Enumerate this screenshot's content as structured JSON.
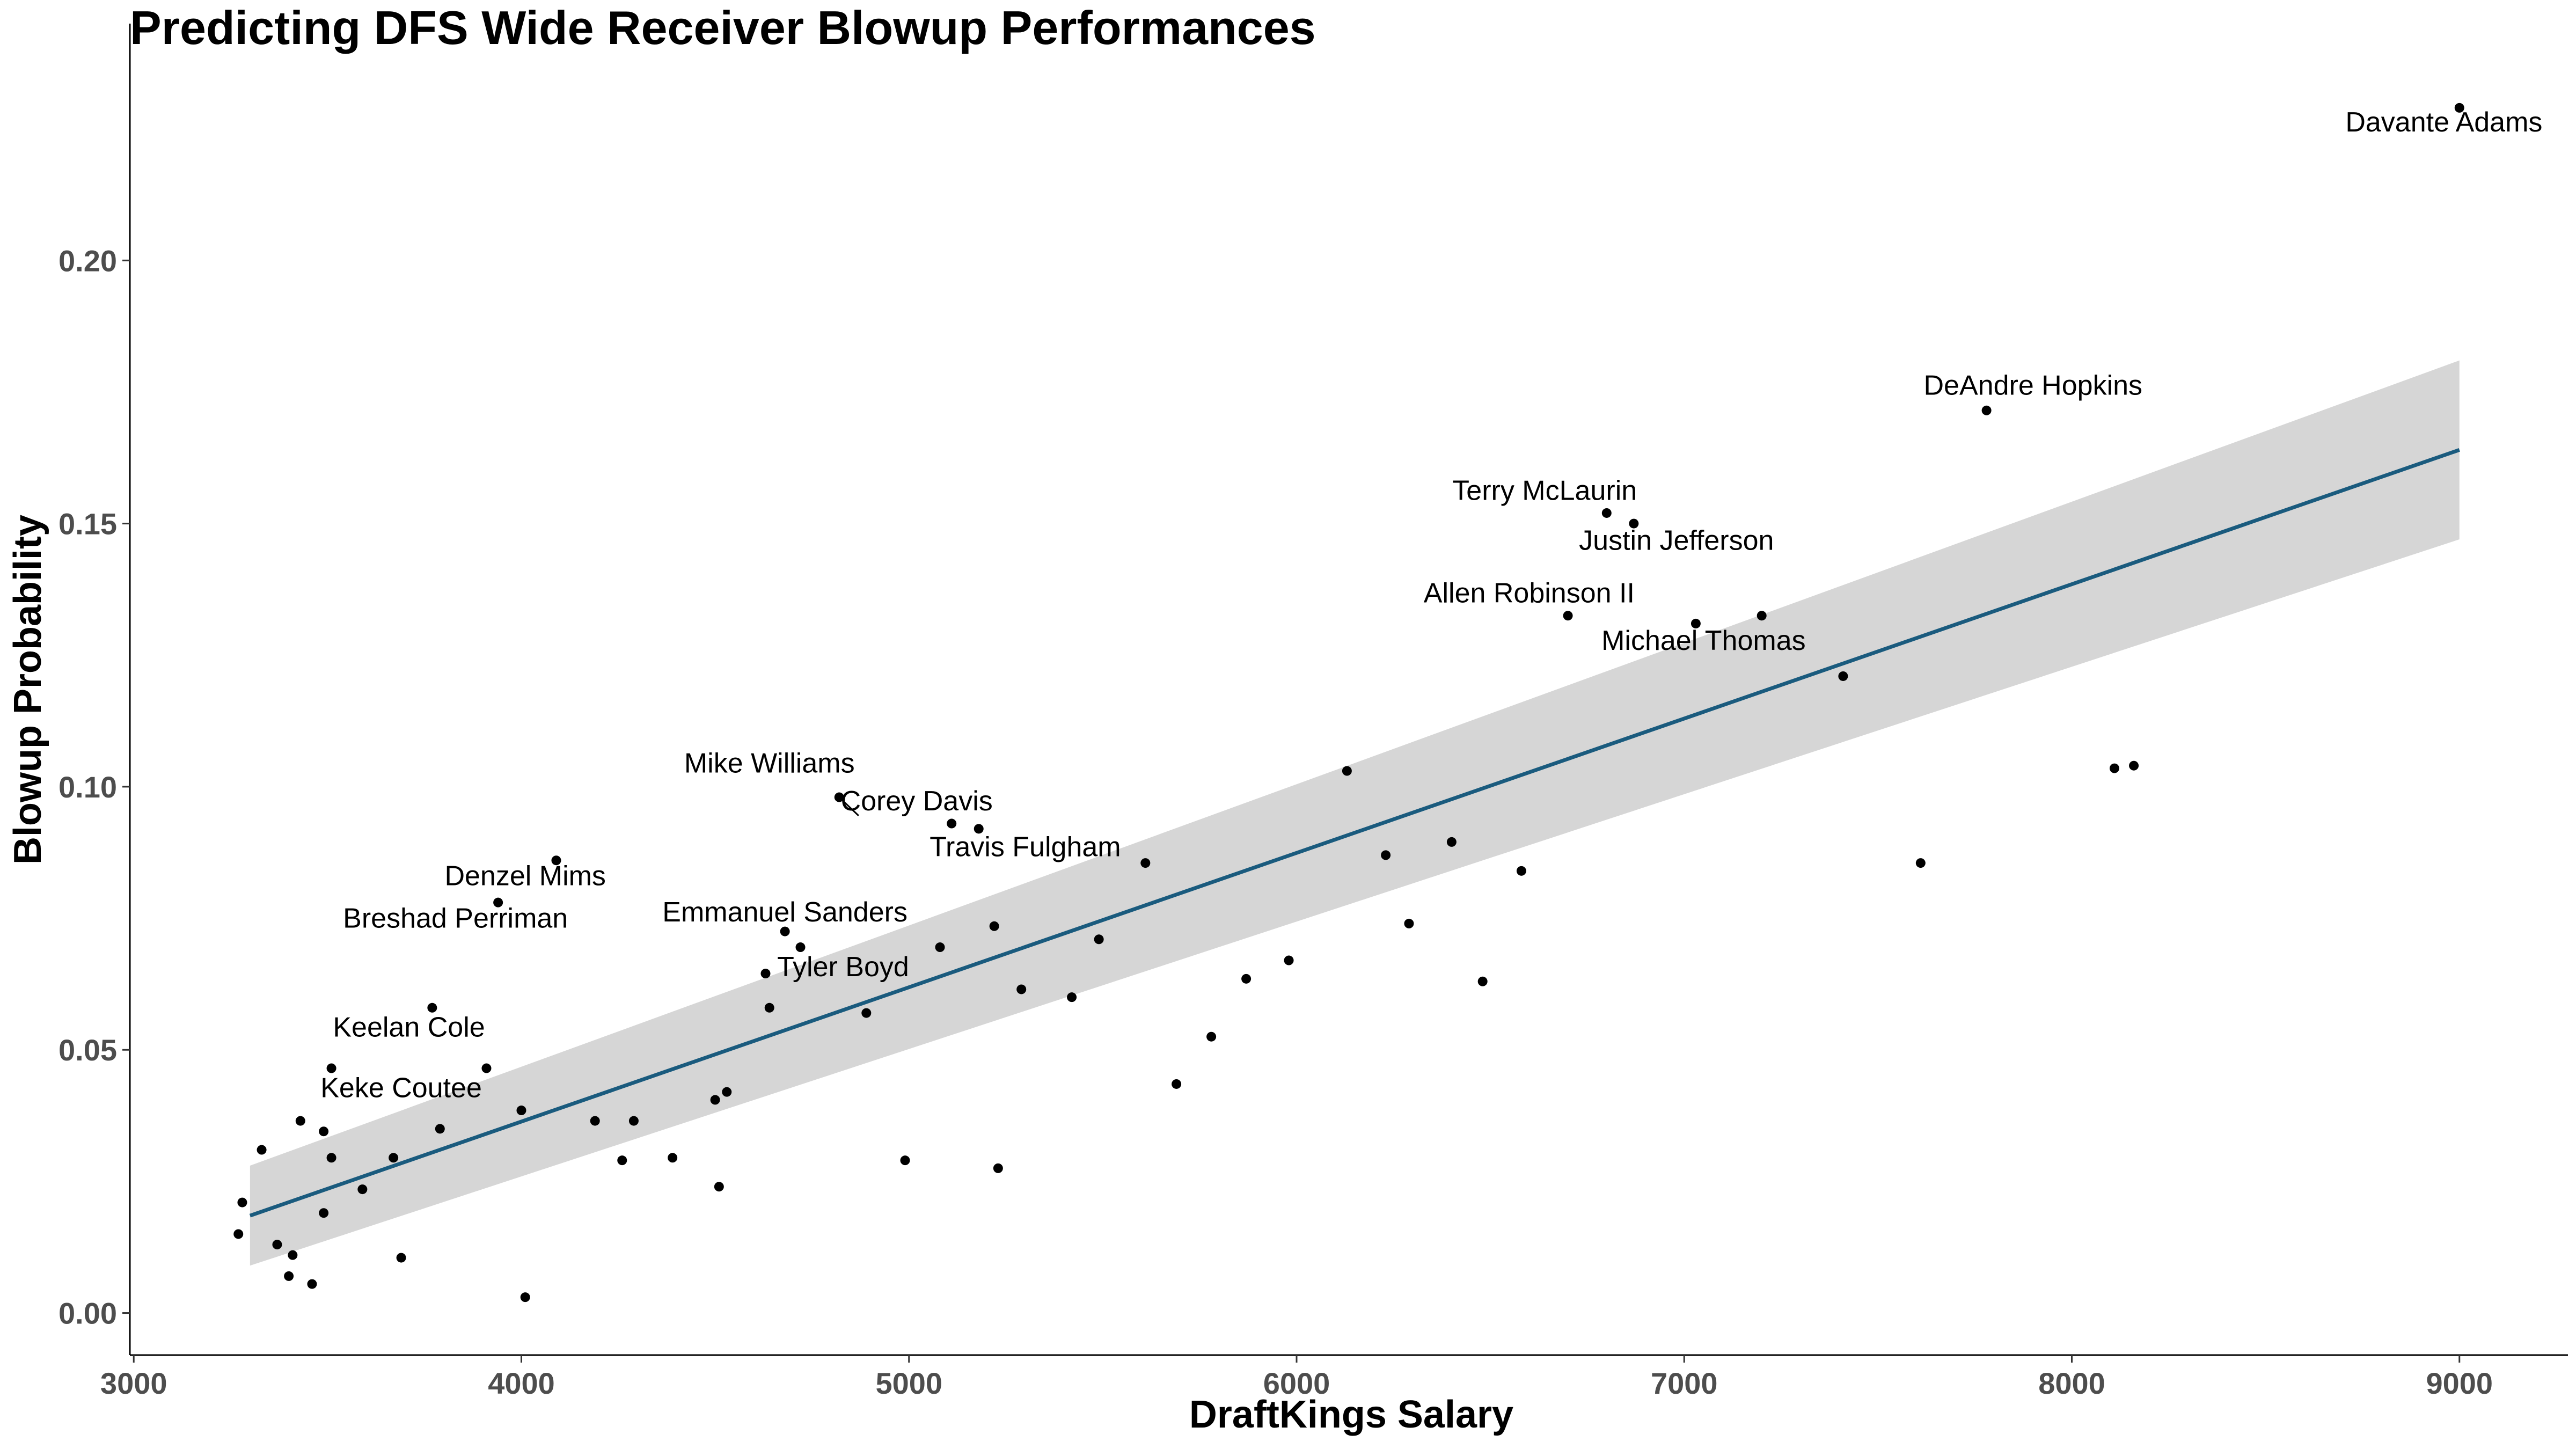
{
  "chart_data": {
    "type": "scatter",
    "title": "Predicting DFS Wide Receiver Blowup Performances",
    "xlabel": "DraftKings Salary",
    "ylabel": "Blowup Probability",
    "xlim": [
      2990,
      9280
    ],
    "ylim": [
      -0.008,
      0.245
    ],
    "x_ticks": [
      3000,
      4000,
      5000,
      6000,
      7000,
      8000,
      9000
    ],
    "x_tick_labels": [
      "3000",
      "4000",
      "5000",
      "6000",
      "7000",
      "8000",
      "9000"
    ],
    "y_ticks": [
      0.0,
      0.05,
      0.1,
      0.15,
      0.2
    ],
    "y_tick_labels": [
      "0.00",
      "0.05",
      "0.10",
      "0.15",
      "0.20"
    ],
    "grid": false,
    "colors": {
      "points": "#000000",
      "fit_line": "#1a5b7e",
      "confidence_band": "#d6d6d6"
    },
    "fit": {
      "x": [
        3300,
        9000
      ],
      "y": [
        0.0185,
        0.164
      ],
      "ci_upper": [
        0.028,
        0.181
      ],
      "ci_lower": [
        0.009,
        0.147
      ]
    },
    "points": [
      {
        "x": 9000,
        "y": 0.229
      },
      {
        "x": 7780,
        "y": 0.1715
      },
      {
        "x": 6800,
        "y": 0.152
      },
      {
        "x": 6870,
        "y": 0.15
      },
      {
        "x": 6700,
        "y": 0.1325
      },
      {
        "x": 7030,
        "y": 0.131
      },
      {
        "x": 7200,
        "y": 0.1325
      },
      {
        "x": 7410,
        "y": 0.121
      },
      {
        "x": 8110,
        "y": 0.1035
      },
      {
        "x": 8160,
        "y": 0.104
      },
      {
        "x": 7610,
        "y": 0.0855
      },
      {
        "x": 6130,
        "y": 0.103
      },
      {
        "x": 6230,
        "y": 0.087
      },
      {
        "x": 6400,
        "y": 0.0895
      },
      {
        "x": 6580,
        "y": 0.084
      },
      {
        "x": 6290,
        "y": 0.074
      },
      {
        "x": 6480,
        "y": 0.063
      },
      {
        "x": 5980,
        "y": 0.067
      },
      {
        "x": 5870,
        "y": 0.0635
      },
      {
        "x": 5780,
        "y": 0.0525
      },
      {
        "x": 5690,
        "y": 0.0435
      },
      {
        "x": 5610,
        "y": 0.0855
      },
      {
        "x": 5490,
        "y": 0.071
      },
      {
        "x": 5420,
        "y": 0.06
      },
      {
        "x": 5290,
        "y": 0.0615
      },
      {
        "x": 5220,
        "y": 0.0735
      },
      {
        "x": 5230,
        "y": 0.0275
      },
      {
        "x": 5080,
        "y": 0.0695
      },
      {
        "x": 5110,
        "y": 0.093
      },
      {
        "x": 5180,
        "y": 0.092
      },
      {
        "x": 4820,
        "y": 0.098
      },
      {
        "x": 4990,
        "y": 0.029
      },
      {
        "x": 4890,
        "y": 0.057
      },
      {
        "x": 4720,
        "y": 0.0695
      },
      {
        "x": 4680,
        "y": 0.0725
      },
      {
        "x": 4630,
        "y": 0.0645
      },
      {
        "x": 4640,
        "y": 0.058
      },
      {
        "x": 4530,
        "y": 0.042
      },
      {
        "x": 4500,
        "y": 0.0405
      },
      {
        "x": 4510,
        "y": 0.024
      },
      {
        "x": 4390,
        "y": 0.0295
      },
      {
        "x": 4290,
        "y": 0.0365
      },
      {
        "x": 4260,
        "y": 0.029
      },
      {
        "x": 4190,
        "y": 0.0365
      },
      {
        "x": 4090,
        "y": 0.086
      },
      {
        "x": 4000,
        "y": 0.0385
      },
      {
        "x": 4010,
        "y": 0.003
      },
      {
        "x": 3940,
        "y": 0.078
      },
      {
        "x": 3910,
        "y": 0.0465
      },
      {
        "x": 3770,
        "y": 0.058
      },
      {
        "x": 3790,
        "y": 0.035
      },
      {
        "x": 3690,
        "y": 0.0105
      },
      {
        "x": 3670,
        "y": 0.0295
      },
      {
        "x": 3590,
        "y": 0.0235
      },
      {
        "x": 3510,
        "y": 0.0465
      },
      {
        "x": 3510,
        "y": 0.0295
      },
      {
        "x": 3490,
        "y": 0.0345
      },
      {
        "x": 3490,
        "y": 0.019
      },
      {
        "x": 3430,
        "y": 0.0365
      },
      {
        "x": 3410,
        "y": 0.011
      },
      {
        "x": 3400,
        "y": 0.007
      },
      {
        "x": 3460,
        "y": 0.0055
      },
      {
        "x": 3370,
        "y": 0.013
      },
      {
        "x": 3330,
        "y": 0.031
      },
      {
        "x": 3280,
        "y": 0.021
      },
      {
        "x": 3270,
        "y": 0.015
      }
    ],
    "annotations": [
      {
        "text": "Davante Adams",
        "x": 8960,
        "y": 0.2245,
        "anchor": "middle"
      },
      {
        "text": "DeAndre Hopkins",
        "x": 7900,
        "y": 0.1745,
        "anchor": "middle"
      },
      {
        "text": "Terry McLaurin",
        "x": 6640,
        "y": 0.1545,
        "anchor": "middle"
      },
      {
        "text": "Justin Jefferson",
        "x": 6980,
        "y": 0.145,
        "anchor": "middle"
      },
      {
        "text": "Allen Robinson II",
        "x": 6600,
        "y": 0.135,
        "anchor": "middle"
      },
      {
        "text": "Michael Thomas",
        "x": 7050,
        "y": 0.126,
        "anchor": "middle"
      },
      {
        "text": "Mike Williams",
        "x": 4640,
        "y": 0.1027,
        "anchor": "middle"
      },
      {
        "text": "Corey Davis",
        "x": 5020,
        "y": 0.0955,
        "anchor": "middle"
      },
      {
        "text": "Travis Fulgham",
        "x": 5300,
        "y": 0.0868,
        "anchor": "middle"
      },
      {
        "text": "Denzel Mims",
        "x": 4010,
        "y": 0.0813,
        "anchor": "middle"
      },
      {
        "text": "Breshad Perriman",
        "x": 3830,
        "y": 0.0732,
        "anchor": "middle"
      },
      {
        "text": "Emmanuel Sanders",
        "x": 4680,
        "y": 0.0744,
        "anchor": "middle"
      },
      {
        "text": "Tyler Boyd",
        "x": 4830,
        "y": 0.064,
        "anchor": "middle"
      },
      {
        "text": "Keelan Cole",
        "x": 3710,
        "y": 0.0525,
        "anchor": "middle"
      },
      {
        "text": "Keke Coutee",
        "x": 3690,
        "y": 0.041,
        "anchor": "middle"
      }
    ],
    "leader_lines": [
      {
        "x1": 4870,
        "y1": 0.0945,
        "x2": 4820,
        "y2": 0.098
      }
    ]
  }
}
